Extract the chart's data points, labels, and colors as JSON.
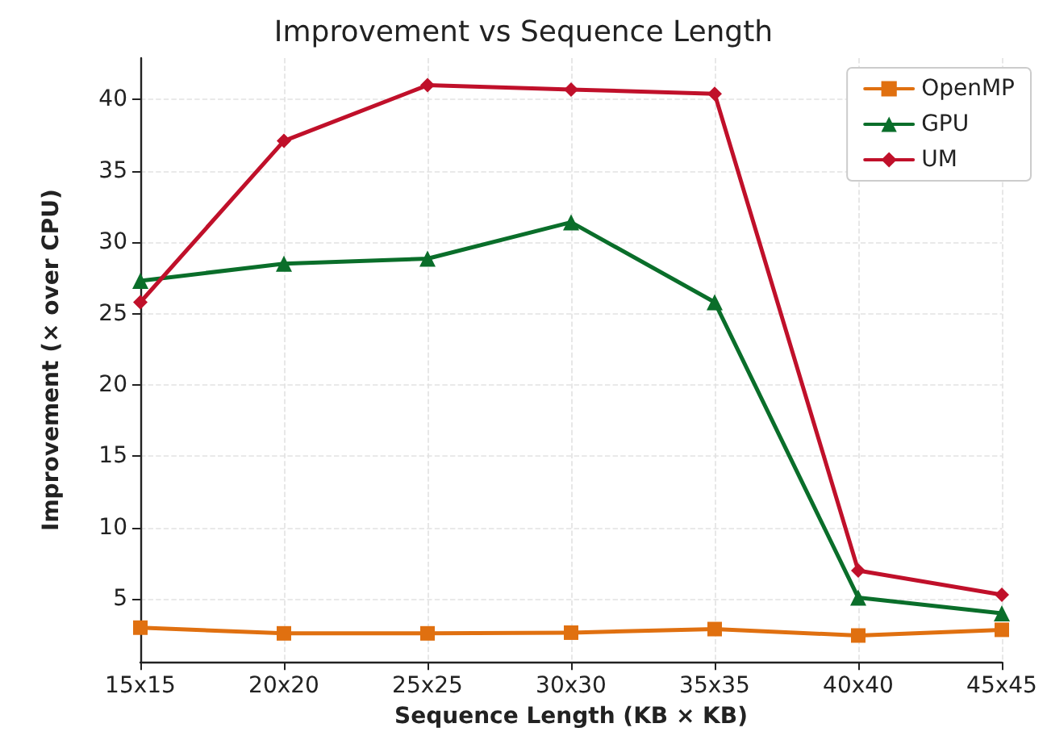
{
  "chart_data": {
    "type": "line",
    "title": "Improvement vs Sequence Length",
    "xlabel": "Sequence Length (KB × KB)",
    "ylabel": "Improvement (× over CPU)",
    "categories": [
      "15x15",
      "20x20",
      "25x25",
      "30x30",
      "35x35",
      "40x40",
      "45x45"
    ],
    "series": [
      {
        "name": "OpenMP",
        "color": "#e07010",
        "marker": "square",
        "values": [
          3.0,
          2.6,
          2.6,
          2.65,
          2.9,
          2.45,
          2.85
        ]
      },
      {
        "name": "GPU",
        "color": "#0a6e2a",
        "marker": "triangle",
        "values": [
          27.3,
          28.5,
          28.85,
          31.4,
          25.8,
          5.1,
          4.0
        ]
      },
      {
        "name": "UM",
        "color": "#c0102a",
        "marker": "diamond",
        "values": [
          25.8,
          37.1,
          41.0,
          40.7,
          40.4,
          7.0,
          5.3
        ]
      }
    ],
    "ylim": [
      0.6,
      42.9
    ],
    "yticks": [
      5,
      10,
      15,
      20,
      25,
      30,
      35,
      40
    ],
    "grid": true,
    "legend": "top right",
    "line_style": "solid"
  }
}
